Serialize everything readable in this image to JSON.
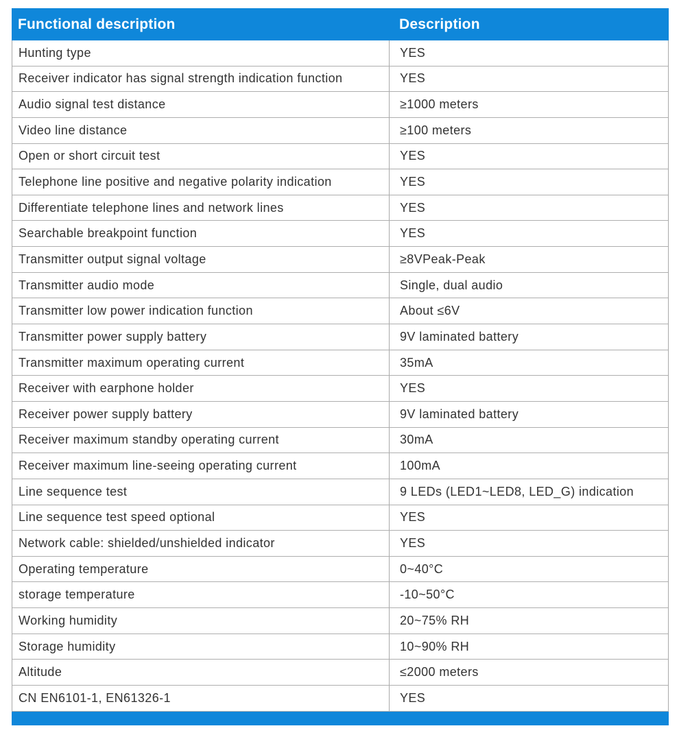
{
  "colors": {
    "accent_blue": "#0f87da",
    "border_gray": "#a9a9a9",
    "text": "#333333",
    "header_text": "#ffffff",
    "page_background": "#ffffff"
  },
  "table": {
    "header": {
      "function_label": "Functional description",
      "description_label": "Description"
    },
    "rows": [
      {
        "function": "Hunting type",
        "description": "YES"
      },
      {
        "function": "Receiver indicator has signal strength indication function",
        "description": "YES"
      },
      {
        "function": "Audio signal test distance",
        "description": "≥1000 meters"
      },
      {
        "function": "Video line distance",
        "description": "≥100 meters"
      },
      {
        "function": "Open or short circuit test",
        "description": "YES"
      },
      {
        "function": "Telephone line positive and negative polarity indication",
        "description": "YES"
      },
      {
        "function": "Differentiate telephone lines and network lines",
        "description": "YES"
      },
      {
        "function": "Searchable breakpoint function",
        "description": "YES"
      },
      {
        "function": "Transmitter output signal voltage",
        "description": "≥8VPeak-Peak"
      },
      {
        "function": "Transmitter audio mode",
        "description": "Single, dual audio"
      },
      {
        "function": "Transmitter low power indication function",
        "description": "About ≤6V"
      },
      {
        "function": "Transmitter power supply battery",
        "description": "9V laminated battery"
      },
      {
        "function": "Transmitter maximum operating current",
        "description": "35mA"
      },
      {
        "function": "Receiver with earphone holder",
        "description": "YES"
      },
      {
        "function": "Receiver power supply battery",
        "description": "9V laminated battery"
      },
      {
        "function": "Receiver maximum standby operating current",
        "description": "30mA"
      },
      {
        "function": "Receiver maximum line-seeing operating current",
        "description": "100mA"
      },
      {
        "function": "Line sequence test",
        "description": "9 LEDs (LED1~LED8, LED_G) indication"
      },
      {
        "function": "Line sequence test speed optional",
        "description": "YES"
      },
      {
        "function": "Network cable: shielded/unshielded indicator",
        "description": "YES"
      },
      {
        "function": "Operating temperature",
        "description": "0~40°C"
      },
      {
        "function": "storage temperature",
        "description": "-10~50°C"
      },
      {
        "function": "Working humidity",
        "description": "20~75% RH"
      },
      {
        "function": "Storage humidity",
        "description": "10~90% RH"
      },
      {
        "function": "Altitude",
        "description": "≤2000 meters"
      },
      {
        "function": "CN EN6101-1, EN61326-1",
        "description": "YES"
      }
    ]
  }
}
